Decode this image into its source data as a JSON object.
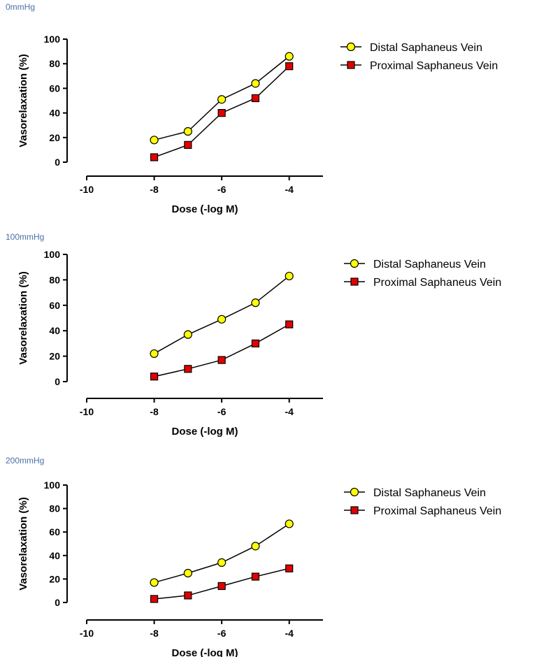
{
  "chart_data": [
    {
      "type": "line",
      "title": "0mmHg",
      "xlabel": "Dose (-log M)",
      "ylabel": "Vasorelaxation (%)",
      "xlim": [
        -10,
        -3
      ],
      "ylim": [
        0,
        100
      ],
      "xticks": [
        "-10",
        "-8",
        "-6",
        "-4"
      ],
      "xtick_values": [
        -10,
        -8,
        -6,
        -4
      ],
      "yticks": [
        "0",
        "20",
        "40",
        "60",
        "80",
        "100"
      ],
      "ytick_values": [
        0,
        20,
        40,
        60,
        80,
        100
      ],
      "legend_position": "top-right",
      "series": [
        {
          "name": "Distal Saphaneus Vein",
          "marker": "circle",
          "color": "#ffff00",
          "x": [
            -8,
            -7,
            -6,
            -5,
            -4
          ],
          "y": [
            18,
            25,
            51,
            64,
            86
          ]
        },
        {
          "name": "Proximal Saphaneus Vein",
          "marker": "square",
          "color": "#e00000",
          "x": [
            -8,
            -7,
            -6,
            -5,
            -4
          ],
          "y": [
            4,
            14,
            40,
            52,
            78
          ]
        }
      ]
    },
    {
      "type": "line",
      "title": "100mmHg",
      "xlabel": "Dose (-log M)",
      "ylabel": "Vasorelaxation (%)",
      "xlim": [
        -10,
        -3
      ],
      "ylim": [
        0,
        100
      ],
      "xticks": [
        "-10",
        "-8",
        "-6",
        "-4"
      ],
      "xtick_values": [
        -10,
        -8,
        -6,
        -4
      ],
      "yticks": [
        "0",
        "20",
        "40",
        "60",
        "80",
        "100"
      ],
      "ytick_values": [
        0,
        20,
        40,
        60,
        80,
        100
      ],
      "legend_position": "top-right",
      "series": [
        {
          "name": "Distal Saphaneus Vein",
          "marker": "circle",
          "color": "#ffff00",
          "x": [
            -8,
            -7,
            -6,
            -5,
            -4
          ],
          "y": [
            22,
            37,
            49,
            62,
            83
          ]
        },
        {
          "name": "Proximal Saphaneus Vein",
          "marker": "square",
          "color": "#e00000",
          "x": [
            -8,
            -7,
            -6,
            -5,
            -4
          ],
          "y": [
            4,
            10,
            17,
            30,
            45
          ]
        }
      ]
    },
    {
      "type": "line",
      "title": "200mmHg",
      "xlabel": "Dose (-log M)",
      "ylabel": "Vasorelaxation (%)",
      "xlim": [
        -10,
        -3
      ],
      "ylim": [
        0,
        100
      ],
      "xticks": [
        "-10",
        "-8",
        "-6",
        "-4"
      ],
      "xtick_values": [
        -10,
        -8,
        -6,
        -4
      ],
      "yticks": [
        "0",
        "20",
        "40",
        "60",
        "80",
        "100"
      ],
      "ytick_values": [
        0,
        20,
        40,
        60,
        80,
        100
      ],
      "legend_position": "top-right",
      "series": [
        {
          "name": "Distal Saphaneus Vein",
          "marker": "circle",
          "color": "#ffff00",
          "x": [
            -8,
            -7,
            -6,
            -5,
            -4
          ],
          "y": [
            17,
            25,
            34,
            48,
            67
          ]
        },
        {
          "name": "Proximal Saphaneus Vein",
          "marker": "square",
          "color": "#e00000",
          "x": [
            -8,
            -7,
            -6,
            -5,
            -4
          ],
          "y": [
            3,
            6,
            14,
            22,
            29
          ]
        }
      ]
    }
  ]
}
